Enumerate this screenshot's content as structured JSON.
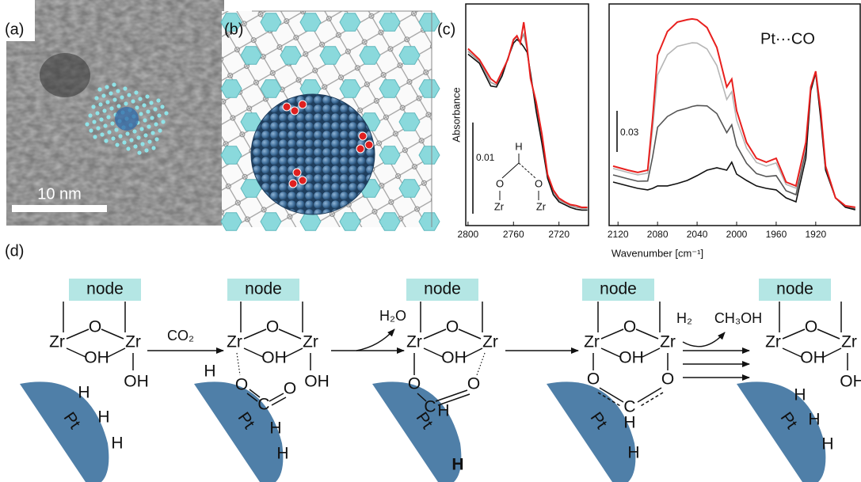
{
  "panels": {
    "a": "(a)",
    "b": "(b)",
    "c": "(c)",
    "d": "(d)"
  },
  "scale_bar": "10 nm",
  "chart_data": [
    {
      "type": "line",
      "ylabel": "Absorbance",
      "xlim": [
        2802,
        2694
      ],
      "xticks": [
        2800,
        2760,
        2720
      ],
      "ylim": [
        0,
        0.0243
      ],
      "scale_bar": 0.01,
      "inset": [
        "H",
        "O",
        "O",
        "Zr",
        "Zr"
      ],
      "x": [
        2800,
        2790,
        2780,
        2775,
        2770,
        2765,
        2760,
        2757,
        2754,
        2751,
        2748,
        2745,
        2740,
        2735,
        2730,
        2725,
        2720,
        2715,
        2710,
        2705,
        2700,
        2695
      ],
      "series": [
        {
          "color": "#9a9a9a",
          "values": [
            0.0191,
            0.018,
            0.0157,
            0.0154,
            0.0167,
            0.0183,
            0.0203,
            0.0207,
            0.0202,
            0.021,
            0.0193,
            0.0164,
            0.013,
            0.0095,
            0.0054,
            0.0037,
            0.0028,
            0.0025,
            0.0022,
            0.002,
            0.0019,
            0.0019
          ]
        },
        {
          "color": "#111111",
          "values": [
            0.0188,
            0.0178,
            0.0153,
            0.0152,
            0.0164,
            0.0183,
            0.02,
            0.0204,
            0.0201,
            0.0196,
            0.019,
            0.0167,
            0.0125,
            0.009,
            0.0052,
            0.0034,
            0.0026,
            0.0023,
            0.002,
            0.0018,
            0.0017,
            0.0017
          ]
        },
        {
          "color": "#e8201e",
          "values": [
            0.0194,
            0.0182,
            0.0161,
            0.0156,
            0.0169,
            0.0182,
            0.0204,
            0.0208,
            0.02,
            0.0223,
            0.0195,
            0.0161,
            0.0135,
            0.01,
            0.0056,
            0.0039,
            0.003,
            0.0026,
            0.0023,
            0.0022,
            0.002,
            0.002
          ]
        }
      ]
    },
    {
      "type": "line",
      "xlabel": "Wavenumber [cm⁻¹]",
      "annotation": "Pt···CO",
      "xlim": [
        2129,
        1875
      ],
      "xticks": [
        2120,
        2080,
        2040,
        2000,
        1960,
        1920
      ],
      "ylim": [
        0,
        0.1615
      ],
      "scale_bar": 0.03,
      "x": [
        2125,
        2110,
        2100,
        2090,
        2085,
        2080,
        2070,
        2060,
        2050,
        2045,
        2040,
        2030,
        2020,
        2010,
        2005,
        2000,
        1990,
        1980,
        1970,
        1960,
        1955,
        1950,
        1940,
        1930,
        1925,
        1920,
        1915,
        1910,
        1900,
        1890,
        1880
      ],
      "series": [
        {
          "color": "#555555",
          "values": [
            0.0369,
            0.0341,
            0.0323,
            0.0325,
            0.05,
            0.0717,
            0.0795,
            0.0836,
            0.0856,
            0.0868,
            0.0875,
            0.0872,
            0.0816,
            0.0677,
            0.0734,
            0.0583,
            0.0454,
            0.0379,
            0.0357,
            0.0364,
            0.0309,
            0.0254,
            0.0225,
            0.0542,
            0.0994,
            0.1119,
            0.0805,
            0.0417,
            0.0202,
            0.0138,
            0.0123
          ]
        },
        {
          "color": "#b5b5b5",
          "values": [
            0.0416,
            0.0387,
            0.037,
            0.0382,
            0.0703,
            0.1098,
            0.1245,
            0.1306,
            0.1324,
            0.1332,
            0.133,
            0.1287,
            0.1166,
            0.0919,
            0.0976,
            0.0768,
            0.0564,
            0.046,
            0.0433,
            0.0456,
            0.0378,
            0.03,
            0.0272,
            0.0589,
            0.1006,
            0.1123,
            0.0828,
            0.0429,
            0.0202,
            0.0142,
            0.013
          ]
        },
        {
          "color": "#111111",
          "values": [
            0.0317,
            0.0289,
            0.0271,
            0.026,
            0.0271,
            0.0289,
            0.0289,
            0.0306,
            0.0329,
            0.0346,
            0.0364,
            0.0404,
            0.0421,
            0.0404,
            0.0462,
            0.0375,
            0.0329,
            0.0289,
            0.0271,
            0.026,
            0.0231,
            0.0202,
            0.0173,
            0.049,
            0.0981,
            0.1114,
            0.0779,
            0.0404,
            0.0202,
            0.0133,
            0.0115
          ]
        },
        {
          "color": "#e8201e",
          "values": [
            0.0433,
            0.0404,
            0.0387,
            0.0404,
            0.0779,
            0.1241,
            0.1414,
            0.1483,
            0.15,
            0.1506,
            0.15,
            0.1443,
            0.1298,
            0.101,
            0.1067,
            0.0837,
            0.0606,
            0.049,
            0.0462,
            0.049,
            0.0404,
            0.0317,
            0.0289,
            0.0606,
            0.101,
            0.1125,
            0.0837,
            0.0433,
            0.0202,
            0.0144,
            0.0133
          ]
        }
      ]
    }
  ],
  "scheme": {
    "steps": [
      {
        "node": "node",
        "pt": "Pt",
        "labels": [
          "Zr",
          "O",
          "Zr",
          "OH",
          "OH",
          "H",
          "H",
          "H"
        ]
      },
      {
        "node": "node",
        "pt": "Pt",
        "labels": [
          "Zr",
          "O",
          "Zr",
          "OH",
          "OH",
          "H",
          "O",
          "C",
          "O",
          "H",
          "H"
        ]
      },
      {
        "node": "node",
        "pt": "Pt",
        "labels": [
          "Zr",
          "O",
          "Zr",
          "OH",
          "O",
          "C",
          "H",
          "O",
          "H"
        ]
      },
      {
        "node": "node",
        "pt": "Pt",
        "labels": [
          "Zr",
          "O",
          "Zr",
          "OH",
          "O",
          "O",
          "C",
          "H",
          "H"
        ]
      },
      {
        "node": "node",
        "pt": "Pt",
        "labels": [
          "Zr",
          "O",
          "Zr",
          "OH",
          "OH",
          "H",
          "H",
          "H"
        ]
      }
    ],
    "arrows": [
      "CO₂",
      "H₂O",
      "H₂",
      "CH₃OH"
    ]
  }
}
